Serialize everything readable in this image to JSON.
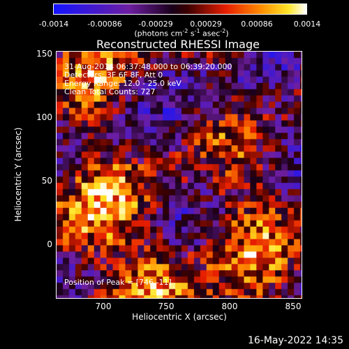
{
  "colorbar": {
    "ticks": [
      "-0.0014",
      "-0.00086",
      "-0.00029",
      "0.00029",
      "0.00086",
      "0.0014"
    ],
    "unit_main": "(photons cm",
    "unit_sup1": "-2",
    "unit_mid1": " s",
    "unit_sup2": "-1",
    "unit_mid2": " asec",
    "unit_sup3": "-2",
    "unit_end": ")"
  },
  "plot": {
    "title": "Reconstructed RHESSI Image",
    "annotations": {
      "line1": "31-Aug-2014 06:37:48.000 to 06:39:20.000",
      "line2": "Detectors: 3F 6F 8F, Att 0",
      "line3": "Energy Range: 12.0 - 25.0 keV",
      "line4": "Clean    Total Counts: 727",
      "peak": "Position of Peak = [746,-11]"
    },
    "xlabel": "Heliocentric X (arcsec)",
    "ylabel": "Heliocentric Y (arcsec)",
    "xticks": [
      "700",
      "750",
      "800",
      "850"
    ],
    "yticks": [
      "150",
      "100",
      "50",
      "0"
    ]
  },
  "chart_data": {
    "type": "heatmap",
    "title": "Reconstructed RHESSI Image",
    "xlabel": "Heliocentric X (arcsec)",
    "ylabel": "Heliocentric Y (arcsec)",
    "xlim": [
      660,
      852
    ],
    "ylim": [
      -48,
      153
    ],
    "colorbar_range": [
      -0.0014,
      0.0014
    ],
    "colormap": "blue-purple-red-yellow-white",
    "peak": [
      746,
      -11
    ]
  },
  "footer": {
    "date": "16-May-2022 14:35"
  }
}
